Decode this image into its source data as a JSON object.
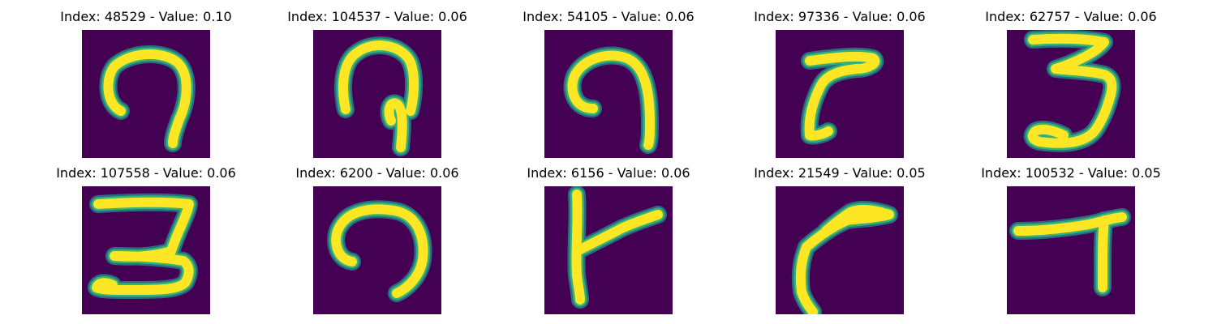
{
  "colors": {
    "background": "#440154",
    "stroke_edge": "#21918c",
    "stroke_mid": "#35b779",
    "stroke_core": "#fde725"
  },
  "panels": [
    {
      "title": "Index: 48529 - Value: 0.10",
      "glyph": "hook-nine"
    },
    {
      "title": "Index: 104537 - Value: 0.06",
      "glyph": "loop-stem"
    },
    {
      "title": "Index: 54105 - Value: 0.06",
      "glyph": "curl-nine"
    },
    {
      "title": "Index: 97336 - Value: 0.06",
      "glyph": "thick-seven"
    },
    {
      "title": "Index: 62757 - Value: 0.06",
      "glyph": "three"
    },
    {
      "title": "Index: 107558 - Value: 0.06",
      "glyph": "three-wide"
    },
    {
      "title": "Index: 6200 - Value: 0.06",
      "glyph": "open-nine"
    },
    {
      "title": "Index: 6156 - Value: 0.06",
      "glyph": "four-like"
    },
    {
      "title": "Index: 21549 - Value: 0.05",
      "glyph": "bent-seven"
    },
    {
      "title": "Index: 100532 - Value: 0.05",
      "glyph": "seven"
    }
  ]
}
